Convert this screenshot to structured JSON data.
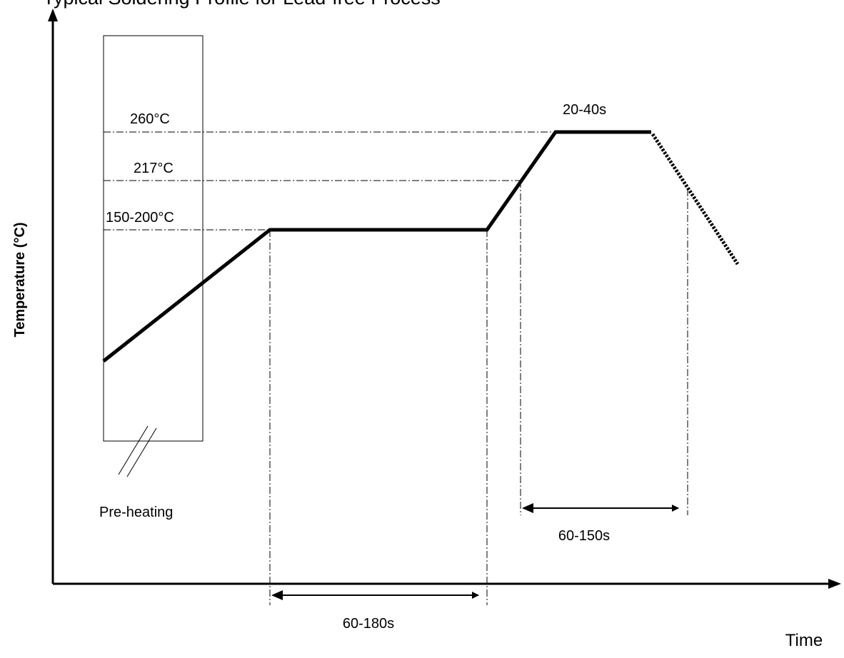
{
  "title": "Typical Soldering Profile for Lead-free Process",
  "axes": {
    "x_label": "Time",
    "y_label": "Temperature (°C)"
  },
  "temperatures": {
    "peak": "260°C",
    "liquidus": "217°C",
    "soak": "150-200°C"
  },
  "durations": {
    "peak_dwell": "20-40s",
    "soak": "60-180s",
    "above_liquidus": "60-150s"
  },
  "zones": {
    "preheat": "Pre-heating"
  },
  "colors": {
    "line": "#000000",
    "background": "#ffffff"
  }
}
